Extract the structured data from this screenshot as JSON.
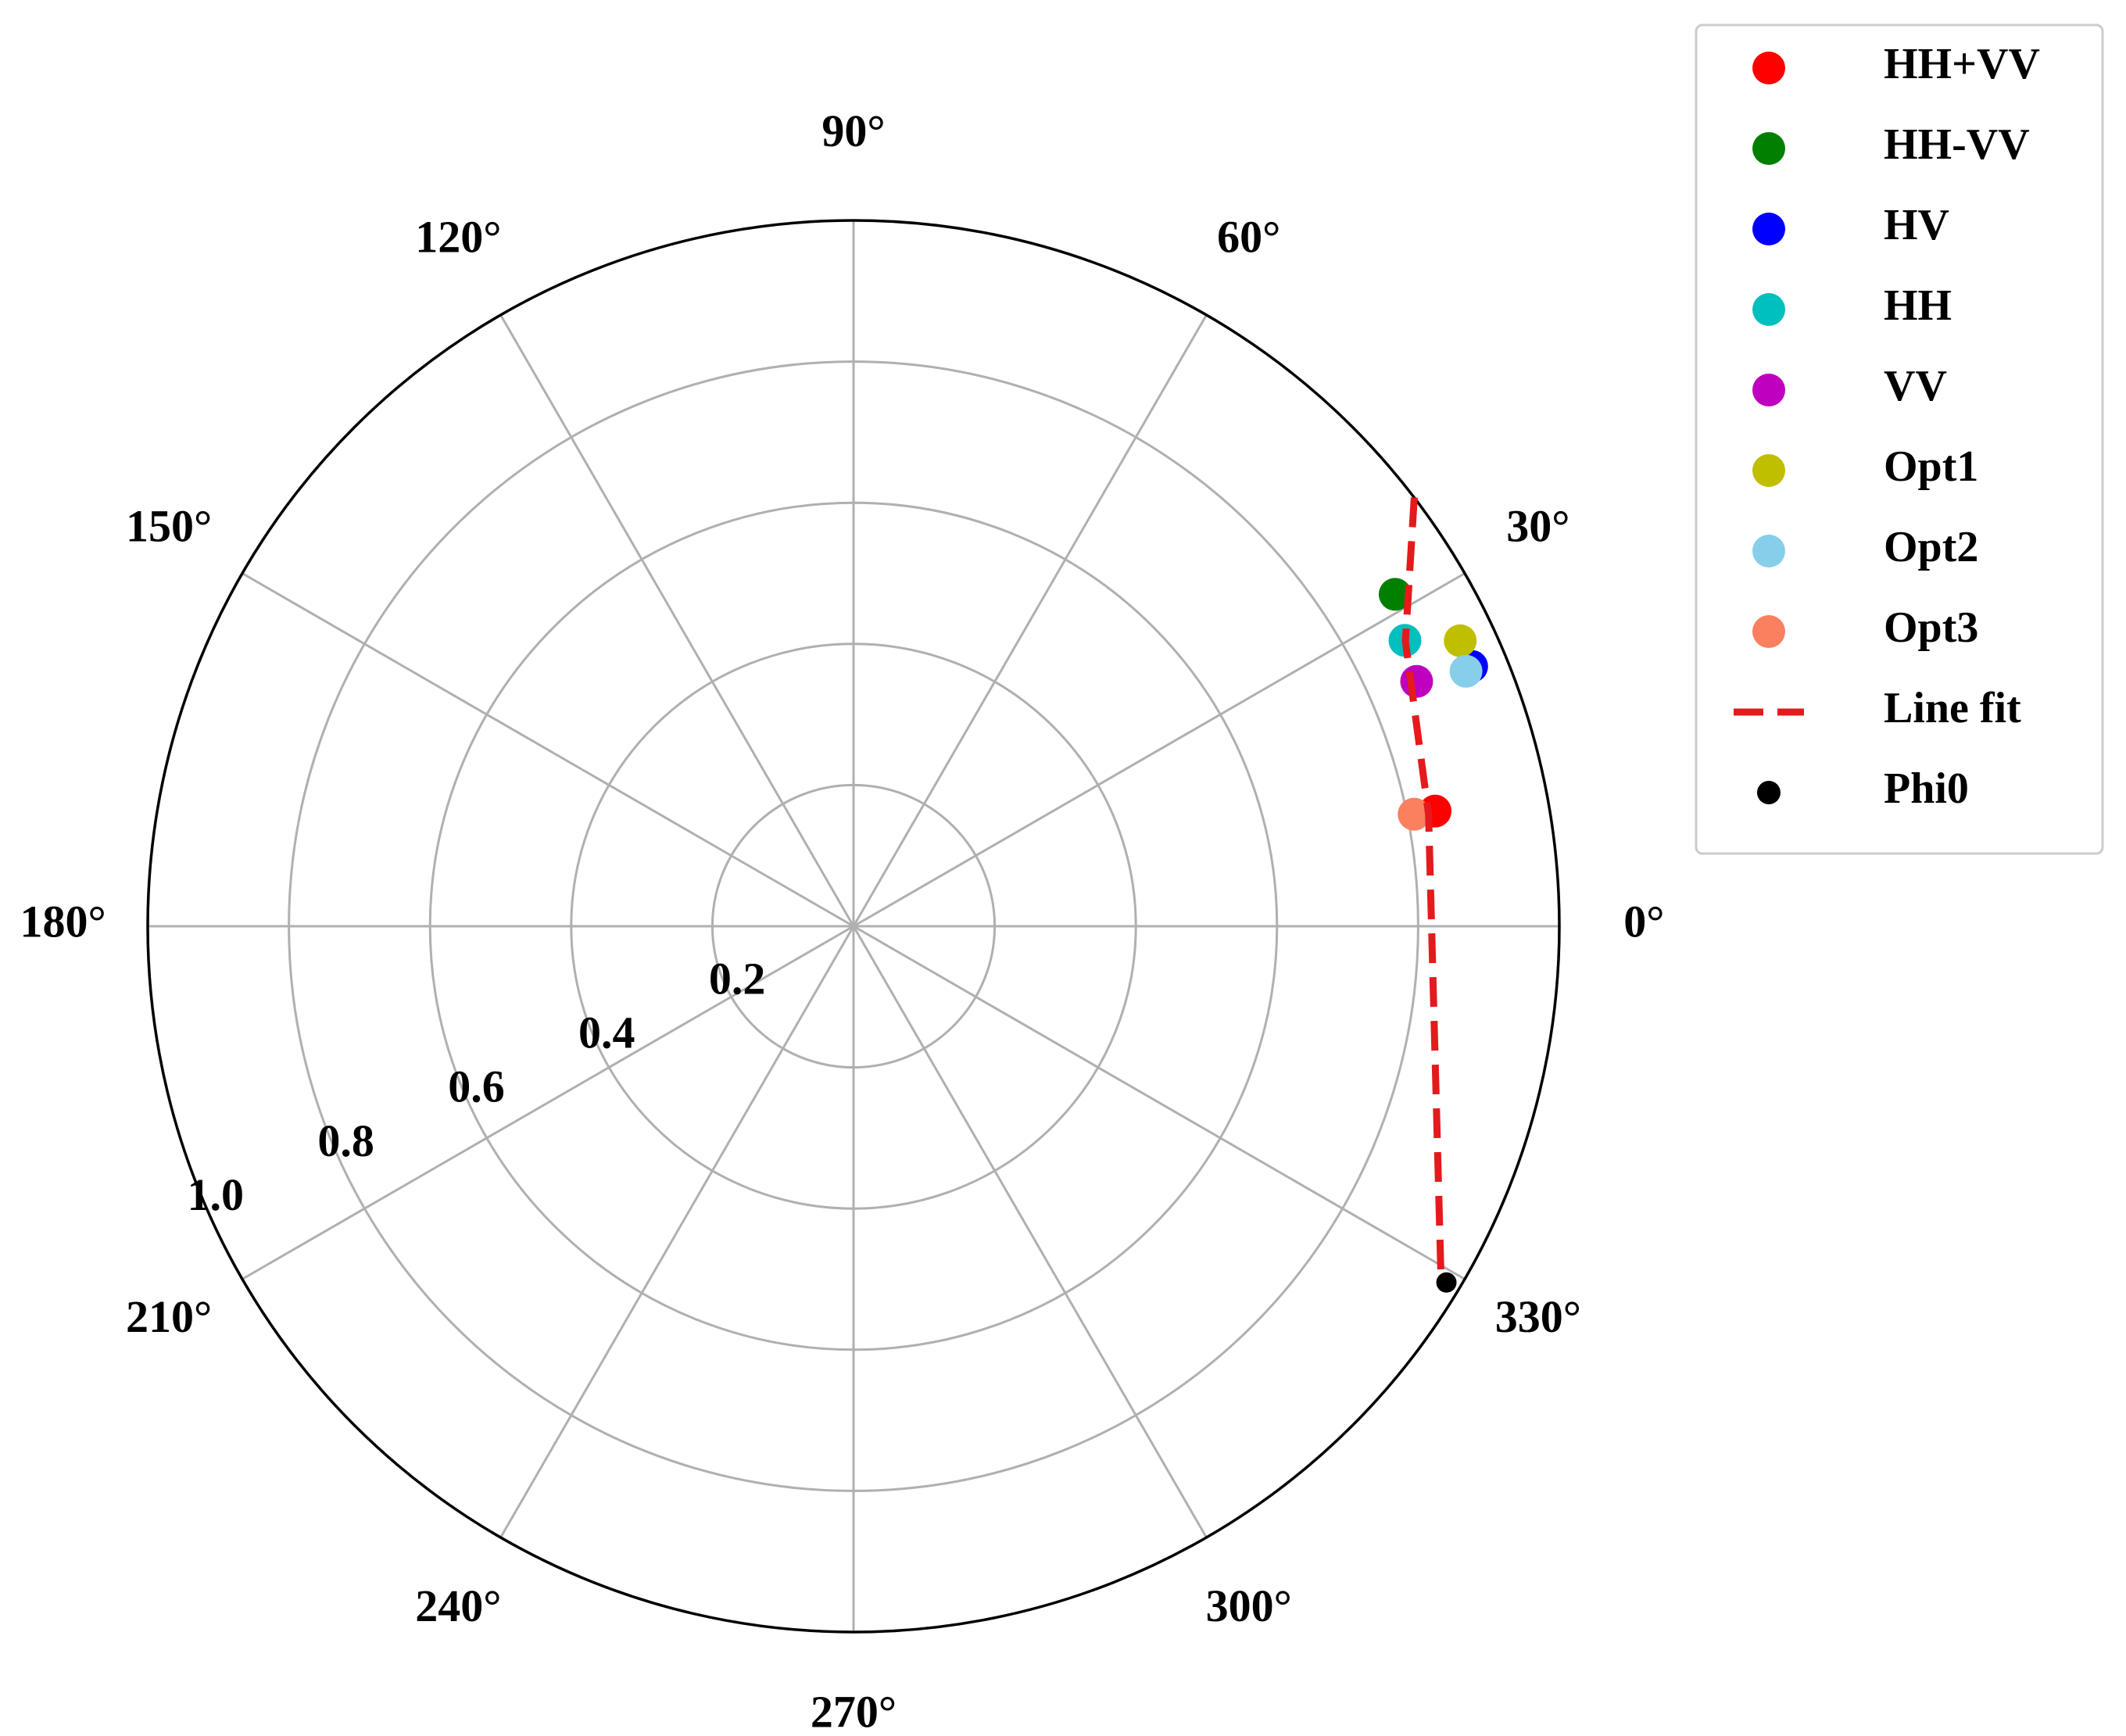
{
  "chart_data": {
    "type": "scatter",
    "projection": "polar",
    "theta_unit": "degrees",
    "radial_ticks": [
      "0.2",
      "0.4",
      "0.6",
      "0.8",
      "1.0"
    ],
    "radial_tick_values": [
      0.2,
      0.4,
      0.6,
      0.8,
      1.0
    ],
    "rlim": [
      0,
      1.0
    ],
    "angular_ticks": [
      "0°",
      "30°",
      "60°",
      "90°",
      "120°",
      "150°",
      "180°",
      "210°",
      "240°",
      "270°",
      "300°",
      "330°"
    ],
    "angular_tick_values": [
      0,
      30,
      60,
      90,
      120,
      150,
      180,
      210,
      240,
      270,
      300,
      330
    ],
    "grid": true,
    "legend_position": "outside-top-right",
    "series": [
      {
        "name": "HH+VV",
        "color": "#ff0000",
        "marker": "circle",
        "points": [
          {
            "theta": 11.2,
            "r": 0.84
          }
        ]
      },
      {
        "name": "HH-VV",
        "color": "#007f00",
        "marker": "circle",
        "points": [
          {
            "theta": 31.5,
            "r": 0.9
          }
        ]
      },
      {
        "name": "HV",
        "color": "#0000ff",
        "marker": "circle",
        "points": [
          {
            "theta": 22.8,
            "r": 0.95
          }
        ]
      },
      {
        "name": "HH",
        "color": "#00bfbf",
        "marker": "circle",
        "points": [
          {
            "theta": 27.4,
            "r": 0.88
          }
        ]
      },
      {
        "name": "VV",
        "color": "#bf00bf",
        "marker": "circle",
        "points": [
          {
            "theta": 23.5,
            "r": 0.87
          }
        ]
      },
      {
        "name": "Opt1",
        "color": "#bfbf00",
        "marker": "circle",
        "points": [
          {
            "theta": 25.2,
            "r": 0.95
          }
        ]
      },
      {
        "name": "Opt2",
        "color": "#87ceeb",
        "marker": "circle",
        "points": [
          {
            "theta": 22.6,
            "r": 0.94
          }
        ]
      },
      {
        "name": "Opt3",
        "color": "#fa8060",
        "marker": "circle",
        "points": [
          {
            "theta": 11.3,
            "r": 0.81
          }
        ]
      },
      {
        "name": "Line fit",
        "color": "#e41a1c",
        "style": "dashed",
        "points": [
          {
            "theta": 37.4,
            "r": 1.0
          },
          {
            "theta": 27.3,
            "r": 0.88
          },
          {
            "theta": 11.0,
            "r": 0.83
          },
          {
            "theta": -30.9,
            "r": 0.97
          }
        ]
      },
      {
        "name": "Phi0",
        "color": "#000000",
        "marker": "circle",
        "points": [
          {
            "theta": -31.0,
            "r": 0.98
          }
        ]
      }
    ]
  }
}
